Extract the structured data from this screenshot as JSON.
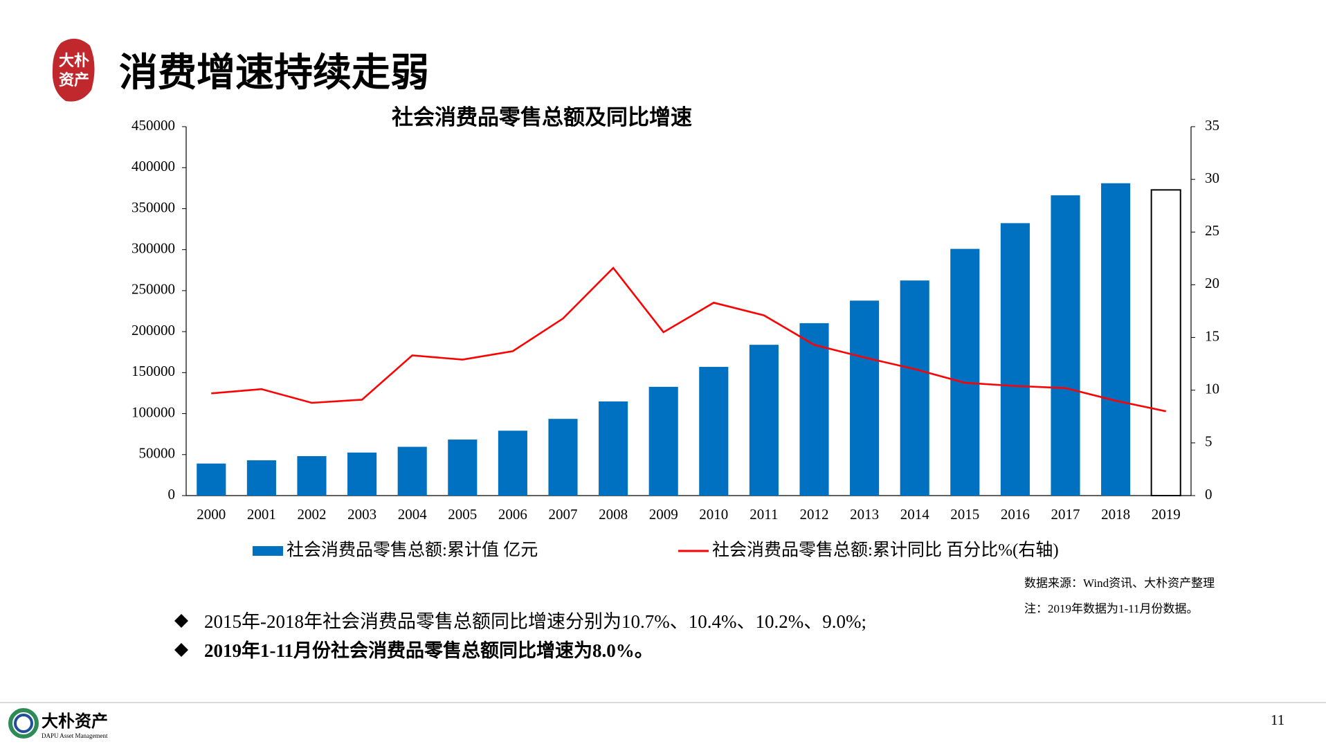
{
  "header": {
    "logo_text": [
      "大朴",
      "资产"
    ],
    "title": "消费增速持续走弱"
  },
  "chart_data": {
    "type": "bar_line",
    "title": "社会消费品零售总额及同比增速",
    "categories": [
      "2000",
      "2001",
      "2002",
      "2003",
      "2004",
      "2005",
      "2006",
      "2007",
      "2008",
      "2009",
      "2010",
      "2011",
      "2012",
      "2013",
      "2014",
      "2015",
      "2016",
      "2017",
      "2018",
      "2019"
    ],
    "series": [
      {
        "name": "社会消费品零售总额:累计值 亿元",
        "type": "bar",
        "color": "#0070c0",
        "colors": [
          "#0070c0",
          "#0070c0",
          "#0070c0",
          "#0070c0",
          "#0070c0",
          "#0070c0",
          "#0070c0",
          "#0070c0",
          "#0070c0",
          "#0070c0",
          "#0070c0",
          "#0070c0",
          "#0070c0",
          "#0070c0",
          "#0070c0",
          "#0070c0",
          "#0070c0",
          "#0070c0",
          "#0070c0",
          "#ffffff"
        ],
        "edgecolors": [
          null,
          null,
          null,
          null,
          null,
          null,
          null,
          null,
          null,
          null,
          null,
          null,
          null,
          null,
          null,
          null,
          null,
          null,
          null,
          "#000000"
        ],
        "values": [
          39105,
          43055,
          48136,
          52516,
          59501,
          68353,
          79145,
          93572,
          114830,
          132678,
          156998,
          183919,
          210307,
          237810,
          262394,
          300931,
          332316,
          366262,
          380987,
          372872
        ]
      },
      {
        "name": "社会消费品零售总额:累计同比 百分比%(右轴)",
        "type": "line",
        "color": "#ff0000",
        "axis": "y2",
        "values": [
          9.7,
          10.1,
          8.8,
          9.1,
          13.3,
          12.9,
          13.7,
          16.8,
          21.6,
          15.5,
          18.3,
          17.1,
          14.3,
          13.1,
          12.0,
          10.7,
          10.4,
          10.2,
          9.0,
          8.0
        ]
      }
    ],
    "ylim": [
      0,
      450000
    ],
    "yticks": [
      0,
      50000,
      100000,
      150000,
      200000,
      250000,
      300000,
      350000,
      400000,
      450000
    ],
    "y2lim": [
      0,
      35
    ],
    "y2ticks": [
      0,
      5,
      10,
      15,
      20,
      25,
      30,
      35
    ],
    "grid": false,
    "legend": "bottom"
  },
  "notes": [
    "数据来源：Wind资讯、大朴资产整理",
    "注：2019年数据为1-11月份数据。"
  ],
  "bullets": [
    "2015年-2018年社会消费品零售总额同比增速分别为10.7%、10.4%、10.2%、9.0%;",
    "2019年1-11月份社会消费品零售总额同比增速为8.0%。"
  ],
  "footer": {
    "logo_name": "大朴资产",
    "logo_sub": "DAPU Asset Management",
    "page": "11"
  }
}
